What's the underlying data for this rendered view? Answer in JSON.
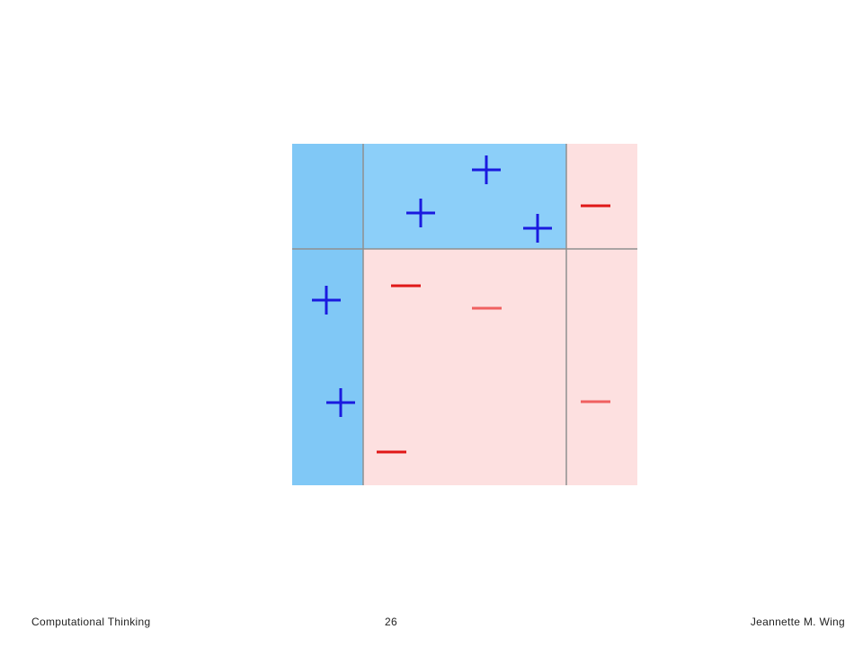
{
  "footer": {
    "left": "Computational Thinking",
    "page_number": 26,
    "right": "Jeannette M. Wing"
  }
}
